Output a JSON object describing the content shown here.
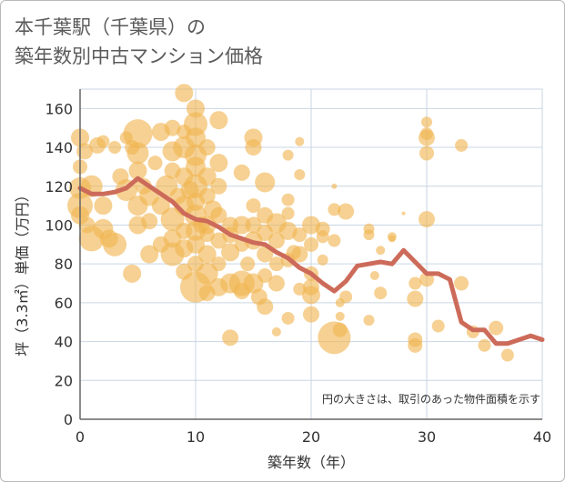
{
  "header": {
    "title_line1": "本千葉駅（千葉県）の",
    "title_line2": "築年数別中古マンション価格"
  },
  "chart_data": {
    "type": "scatter",
    "title": "本千葉駅（千葉県）の築年数別中古マンション価格",
    "xlabel": "築年数（年）",
    "ylabel": "坪（3.3㎡）単価（万円）",
    "xlim": [
      0,
      40
    ],
    "ylim": [
      0,
      170
    ],
    "xticks": [
      0,
      10,
      20,
      30,
      40
    ],
    "yticks": [
      0,
      20,
      40,
      60,
      80,
      100,
      120,
      140,
      160
    ],
    "grid": true,
    "note": "円の大きさは、取引のあった物件面積を示す",
    "colors": {
      "bubble": "#f0b450",
      "line": "#cd6b5a",
      "grid": "#c9d6e3",
      "axis": "#666666"
    },
    "trend_line": {
      "x": [
        0,
        1,
        2,
        3,
        4,
        5,
        6,
        7,
        8,
        9,
        10,
        11,
        12,
        13,
        14,
        15,
        16,
        17,
        18,
        19,
        20,
        21,
        22,
        23,
        24,
        25,
        26,
        27,
        28,
        29,
        30,
        31,
        32,
        33,
        34,
        35,
        36,
        37,
        38,
        39,
        40
      ],
      "y": [
        119,
        116,
        116,
        117,
        119,
        124,
        120,
        116,
        112,
        106,
        103,
        102,
        99,
        95,
        93,
        91,
        90,
        86,
        83,
        78,
        75,
        70,
        66,
        71,
        79,
        80,
        81,
        80,
        87,
        81,
        75,
        75,
        72,
        50,
        46,
        46,
        39,
        39,
        41,
        43,
        41
      ]
    },
    "bubbles": [
      [
        0,
        145,
        10
      ],
      [
        0,
        130,
        8
      ],
      [
        0,
        119,
        12
      ],
      [
        0,
        110,
        14
      ],
      [
        0,
        105,
        10
      ],
      [
        0.4,
        138,
        9
      ],
      [
        0.6,
        100,
        9
      ],
      [
        1,
        93,
        14
      ],
      [
        1,
        120,
        12
      ],
      [
        1.5,
        141,
        9
      ],
      [
        2,
        110,
        10
      ],
      [
        2,
        98,
        11
      ],
      [
        2,
        143,
        7
      ],
      [
        2.5,
        93,
        10
      ],
      [
        3,
        90,
        13
      ],
      [
        3,
        140,
        7
      ],
      [
        3.5,
        125,
        9
      ],
      [
        4,
        118,
        12
      ],
      [
        4,
        145,
        7
      ],
      [
        4.5,
        75,
        10
      ],
      [
        4.5,
        140,
        8
      ],
      [
        5,
        147,
        16
      ],
      [
        5,
        137,
        12
      ],
      [
        5,
        128,
        10
      ],
      [
        5,
        110,
        11
      ],
      [
        5,
        100,
        10
      ],
      [
        5.5,
        120,
        9
      ],
      [
        6,
        115,
        11
      ],
      [
        6,
        102,
        9
      ],
      [
        6,
        85,
        10
      ],
      [
        6.5,
        132,
        8
      ],
      [
        7,
        148,
        10
      ],
      [
        7,
        110,
        10
      ],
      [
        7,
        90,
        9
      ],
      [
        7.5,
        120,
        12
      ],
      [
        8,
        138,
        11
      ],
      [
        8,
        128,
        9
      ],
      [
        8,
        103,
        13
      ],
      [
        8,
        93,
        10
      ],
      [
        8,
        85,
        13
      ],
      [
        8,
        150,
        9
      ],
      [
        8.5,
        115,
        9
      ],
      [
        9,
        168,
        10
      ],
      [
        9,
        140,
        12
      ],
      [
        9,
        125,
        10
      ],
      [
        9,
        110,
        11
      ],
      [
        9,
        97,
        9
      ],
      [
        9,
        88,
        10
      ],
      [
        9,
        76,
        9
      ],
      [
        9,
        148,
        8
      ],
      [
        9.5,
        118,
        10
      ],
      [
        10,
        160,
        10
      ],
      [
        10,
        152,
        13
      ],
      [
        10,
        145,
        11
      ],
      [
        10,
        136,
        12
      ],
      [
        10,
        130,
        11
      ],
      [
        10,
        120,
        13
      ],
      [
        10,
        112,
        10
      ],
      [
        10,
        105,
        12
      ],
      [
        10,
        97,
        11
      ],
      [
        10,
        90,
        10
      ],
      [
        10,
        80,
        9
      ],
      [
        10,
        68,
        17
      ],
      [
        10.5,
        100,
        9
      ],
      [
        11,
        140,
        9
      ],
      [
        11,
        125,
        10
      ],
      [
        11,
        115,
        9
      ],
      [
        11,
        100,
        10
      ],
      [
        11,
        95,
        8
      ],
      [
        11,
        85,
        10
      ],
      [
        11,
        75,
        12
      ],
      [
        11,
        65,
        9
      ],
      [
        11.5,
        108,
        10
      ],
      [
        12,
        154,
        10
      ],
      [
        12,
        132,
        10
      ],
      [
        12,
        120,
        9
      ],
      [
        12,
        105,
        9
      ],
      [
        12,
        92,
        9
      ],
      [
        12,
        80,
        8
      ],
      [
        12,
        68,
        10
      ],
      [
        13,
        42,
        9
      ],
      [
        13,
        70,
        11
      ],
      [
        13,
        100,
        9
      ],
      [
        13,
        86,
        10
      ],
      [
        13,
        95,
        9
      ],
      [
        14,
        127,
        9
      ],
      [
        14,
        100,
        10
      ],
      [
        14,
        90,
        8
      ],
      [
        14,
        70,
        14
      ],
      [
        14,
        66,
        9
      ],
      [
        14.5,
        80,
        8
      ],
      [
        15,
        145,
        10
      ],
      [
        15,
        140,
        9
      ],
      [
        15,
        110,
        8
      ],
      [
        15,
        100,
        9
      ],
      [
        15,
        92,
        10
      ],
      [
        15,
        70,
        11
      ],
      [
        15.5,
        63,
        9
      ],
      [
        16,
        122,
        11
      ],
      [
        16,
        105,
        9
      ],
      [
        16,
        96,
        9
      ],
      [
        16,
        85,
        9
      ],
      [
        16,
        74,
        8
      ],
      [
        16,
        58,
        9
      ],
      [
        17,
        101,
        11
      ],
      [
        17,
        92,
        9
      ],
      [
        17,
        80,
        8
      ],
      [
        17,
        70,
        9
      ],
      [
        17,
        45,
        5
      ],
      [
        18,
        136,
        6
      ],
      [
        18,
        113,
        7
      ],
      [
        18,
        106,
        7
      ],
      [
        18,
        97,
        10
      ],
      [
        18,
        82,
        8
      ],
      [
        18,
        52,
        7
      ],
      [
        18.5,
        86,
        8
      ],
      [
        19,
        143,
        5
      ],
      [
        19,
        126,
        6
      ],
      [
        19,
        95,
        8
      ],
      [
        19,
        85,
        9
      ],
      [
        19,
        67,
        7
      ],
      [
        20,
        100,
        10
      ],
      [
        20,
        90,
        8
      ],
      [
        20,
        75,
        8
      ],
      [
        20,
        68,
        9
      ],
      [
        20,
        64,
        10
      ],
      [
        20,
        54,
        9
      ],
      [
        21,
        98,
        8
      ],
      [
        21,
        94,
        7
      ],
      [
        21,
        82,
        6
      ],
      [
        22,
        120,
        3
      ],
      [
        22,
        108,
        7
      ],
      [
        22,
        92,
        7
      ],
      [
        22,
        42,
        18
      ],
      [
        22.5,
        60,
        5
      ],
      [
        22.5,
        53,
        5
      ],
      [
        22.5,
        46,
        8
      ],
      [
        23,
        107,
        9
      ],
      [
        23,
        63,
        7
      ],
      [
        25,
        98,
        6
      ],
      [
        25,
        95,
        6
      ],
      [
        25,
        51,
        6
      ],
      [
        25.5,
        74,
        5
      ],
      [
        26,
        87,
        5
      ],
      [
        26,
        65,
        7
      ],
      [
        27,
        94,
        5
      ],
      [
        27,
        93,
        4
      ],
      [
        28,
        106,
        2
      ],
      [
        29,
        70,
        7
      ],
      [
        29,
        62,
        9
      ],
      [
        29,
        41,
        8
      ],
      [
        29,
        38,
        8
      ],
      [
        30,
        153,
        6
      ],
      [
        30,
        147,
        7
      ],
      [
        30,
        145,
        9
      ],
      [
        30,
        137,
        8
      ],
      [
        30,
        103,
        9
      ],
      [
        30,
        72,
        8
      ],
      [
        31,
        48,
        7
      ],
      [
        33,
        141,
        7
      ],
      [
        33,
        70,
        8
      ],
      [
        34,
        45,
        7
      ],
      [
        35,
        38,
        7
      ],
      [
        36,
        47,
        8
      ],
      [
        37,
        33,
        7
      ]
    ]
  }
}
